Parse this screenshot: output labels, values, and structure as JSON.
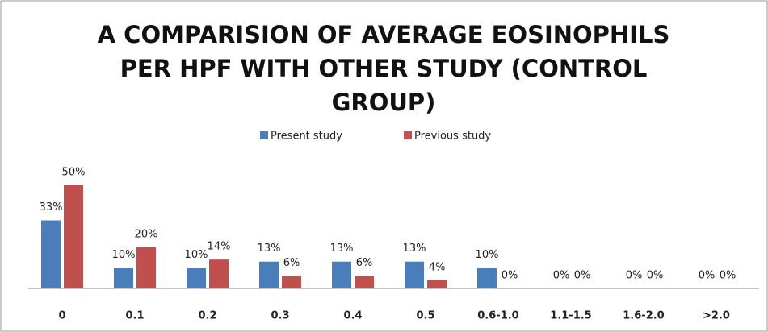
{
  "chart_data": {
    "type": "bar",
    "title": "A COMPARISION OF AVERAGE EOSINOPHILS PER HPF WITH OTHER STUDY (CONTROL GROUP)",
    "categories": [
      "0",
      "0.1",
      "0.2",
      "0.3",
      "0.4",
      "0.5",
      "0.6-1.0",
      "1.1-1.5",
      "1.6-2.0",
      ">2.0"
    ],
    "series": [
      {
        "name": "Present study",
        "color": "#4a7ebb",
        "values": [
          33,
          10,
          10,
          13,
          13,
          13,
          10,
          0,
          0,
          0
        ],
        "value_labels": [
          "33%",
          "10%",
          "10%",
          "13%",
          "13%",
          "13%",
          "10%",
          "0%",
          "0%",
          "0%"
        ]
      },
      {
        "name": "Previous study",
        "color": "#c0504d",
        "values": [
          50,
          20,
          14,
          6,
          6,
          4,
          0,
          0,
          0,
          0
        ],
        "value_labels": [
          "50%",
          "20%",
          "14%",
          "6%",
          "6%",
          "4%",
          "0%",
          "0%",
          "0%",
          "0%"
        ]
      }
    ],
    "legend": "top"
  }
}
